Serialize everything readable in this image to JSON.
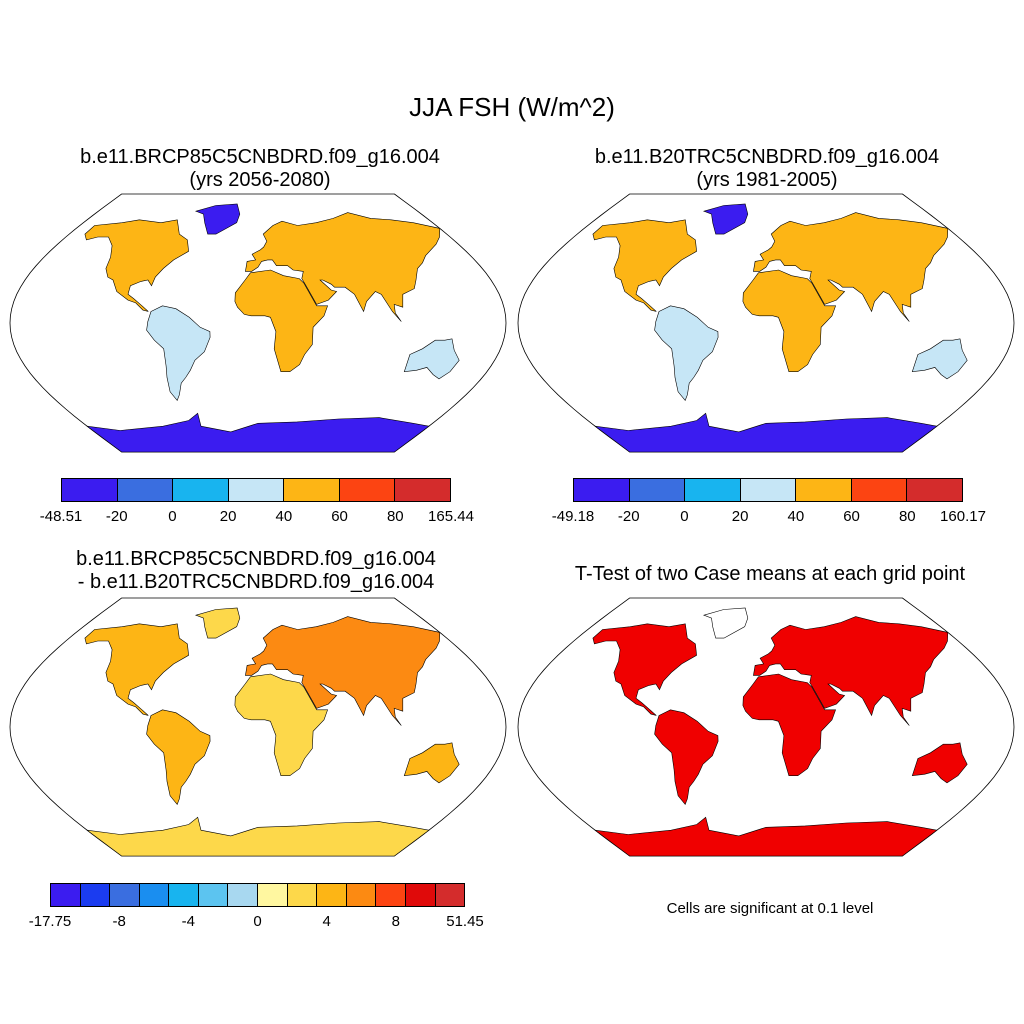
{
  "title": "JJA FSH (W/m^2)",
  "panels": [
    {
      "title_line1": "b.e11.BRCP85C5CNBDRD.f09_g16.004",
      "title_line2": "(yrs 2056-2080)",
      "colorbar": {
        "colors": [
          "#3b1cf0",
          "#3a6ee0",
          "#18b4ef",
          "#c6e6f6",
          "#fdb515",
          "#fc4412",
          "#d42c2c"
        ],
        "labels": [
          "-48.51",
          "-20",
          "0",
          "20",
          "40",
          "60",
          "80",
          "165.44"
        ]
      }
    },
    {
      "title_line1": "b.e11.B20TRC5CNBDRD.f09_g16.004",
      "title_line2": "(yrs 1981-2005)",
      "colorbar": {
        "colors": [
          "#3b1cf0",
          "#3a6ee0",
          "#18b4ef",
          "#c6e6f6",
          "#fdb515",
          "#fc4412",
          "#d42c2c"
        ],
        "labels": [
          "-49.18",
          "-20",
          "0",
          "20",
          "40",
          "60",
          "80",
          "160.17"
        ]
      }
    },
    {
      "title_line1": "b.e11.BRCP85C5CNBDRD.f09_g16.004",
      "title_line2": "- b.e11.B20TRC5CNBDRD.f09_g16.004",
      "colorbar": {
        "colors": [
          "#3b1cf0",
          "#1b3cf0",
          "#3a6ee0",
          "#1a8ef0",
          "#18b4ef",
          "#5cc4f0",
          "#a8d8f0",
          "#fff7a0",
          "#fdd84a",
          "#fdb515",
          "#fc8a12",
          "#fc4412",
          "#e00a0a",
          "#d42c2c"
        ],
        "labels": [
          "-17.75",
          "-8",
          "-4",
          "0",
          "4",
          "8",
          "51.45"
        ]
      }
    },
    {
      "title_line1": "T-Test of two Case means at each grid point",
      "note": "Cells are significant at 0.1 level",
      "signif_color": "#f00000"
    }
  ]
}
